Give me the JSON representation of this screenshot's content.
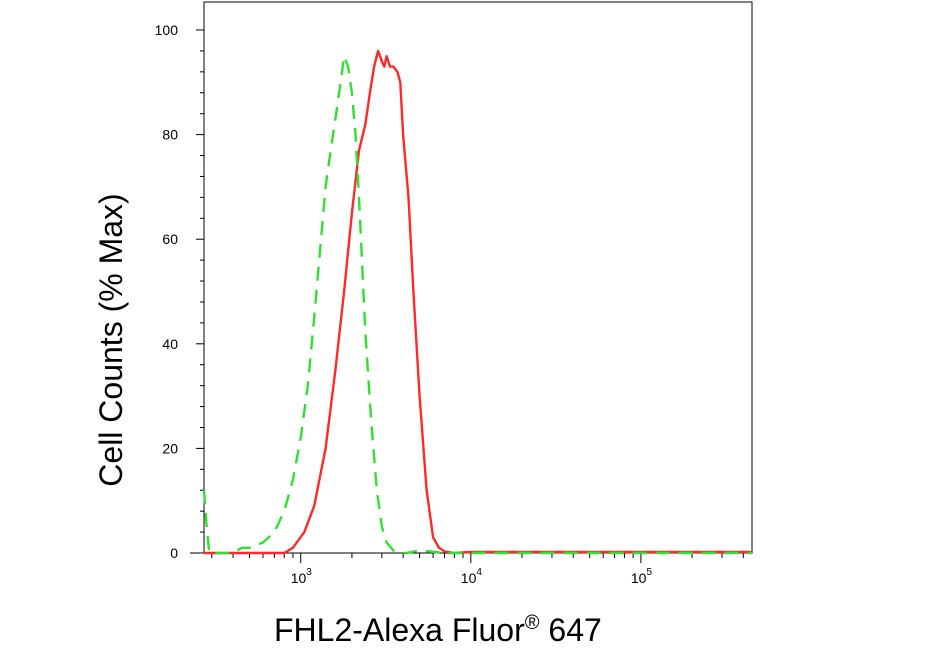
{
  "chart_data": {
    "type": "line",
    "title": "",
    "xlabel": "FHL2-Alexa Fluor® 647",
    "xlabel_main": "FHL2-Alexa Fluor",
    "xlabel_mark": "®",
    "xlabel_tail": " 647",
    "ylabel": "Cell Counts (% Max)",
    "x_scale": "log",
    "xlim": [
      270,
      450000
    ],
    "ylim": [
      0,
      100
    ],
    "x_ticks": [
      {
        "value": 1000,
        "base": "10",
        "exp": "3"
      },
      {
        "value": 10000,
        "base": "10",
        "exp": "4"
      },
      {
        "value": 100000,
        "base": "10",
        "exp": "5"
      }
    ],
    "y_ticks": [
      {
        "value": 0,
        "label": "0"
      },
      {
        "value": 20,
        "label": "20"
      },
      {
        "value": 40,
        "label": "40"
      },
      {
        "value": 60,
        "label": "60"
      },
      {
        "value": 80,
        "label": "80"
      },
      {
        "value": 100,
        "label": "100"
      }
    ],
    "grid": false,
    "legend": "none",
    "series": [
      {
        "color": "#ff2a2a",
        "style": "solid",
        "x": [
          270,
          500,
          800,
          900,
          1050,
          1200,
          1400,
          1600,
          1800,
          2000,
          2200,
          2400,
          2550,
          2700,
          2850,
          3000,
          3100,
          3200,
          3350,
          3500,
          3700,
          3850,
          4000,
          4300,
          4600,
          5000,
          5500,
          6000,
          6500,
          7000,
          8000,
          10000,
          30000,
          100000,
          450000
        ],
        "y": [
          0,
          0,
          0,
          1,
          4,
          9,
          20,
          35,
          50,
          65,
          77,
          82,
          88,
          93,
          96,
          94,
          93,
          95,
          93,
          93,
          92,
          90,
          80,
          68,
          50,
          30,
          12,
          3,
          1,
          0.3,
          0,
          0.2,
          0.2,
          0.2,
          0.2
        ]
      },
      {
        "color": "#33dd33",
        "style": "dashed",
        "x": [
          270,
          280,
          290,
          310,
          330,
          350,
          400,
          450,
          500,
          600,
          700,
          800,
          900,
          1000,
          1100,
          1200,
          1300,
          1400,
          1500,
          1600,
          1700,
          1800,
          1900,
          2000,
          2100,
          2200,
          2300,
          2400,
          2600,
          2800,
          3000,
          3200,
          3500,
          3800,
          4200,
          5000,
          7000,
          450000
        ],
        "y": [
          12,
          5,
          0,
          0,
          0,
          0,
          0,
          1,
          1,
          2,
          4,
          8,
          14,
          22,
          32,
          45,
          58,
          70,
          77,
          83,
          89,
          95,
          93,
          88,
          80,
          68,
          55,
          42,
          25,
          12,
          5,
          2,
          0.5,
          0,
          0,
          0.5,
          0,
          0
        ]
      }
    ]
  }
}
